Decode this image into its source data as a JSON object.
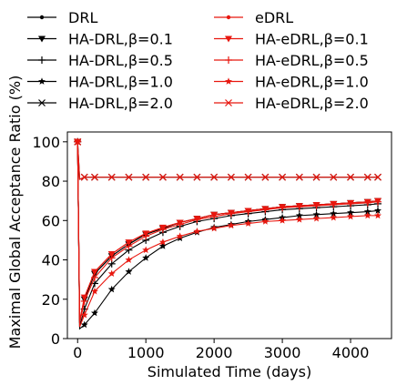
{
  "chart_data": {
    "type": "line",
    "title": "",
    "xlabel": "Simulated Time (days)",
    "ylabel": "Maximal Global Acceptance Ratio (%)",
    "xlim": [
      -150,
      4600
    ],
    "ylim": [
      0,
      105
    ],
    "xticks": [
      0,
      1000,
      2000,
      3000,
      4000
    ],
    "yticks": [
      0,
      20,
      40,
      60,
      80,
      100
    ],
    "grid": false,
    "legend": "above-plot, two columns",
    "colors": {
      "black": "#000000",
      "red": "#e8170f"
    },
    "series": [
      {
        "name": "DRL",
        "color": "#000000",
        "marker": "dot",
        "x": [
          0,
          30,
          100,
          250,
          500,
          750,
          1000,
          1250,
          1500,
          1750,
          2000,
          2250,
          2500,
          2750,
          3000,
          3250,
          3500,
          3750,
          4000,
          4250,
          4400
        ],
        "y": [
          100,
          8,
          20,
          33,
          42,
          48,
          53,
          56,
          59,
          61,
          63,
          64,
          65,
          66,
          67,
          67.5,
          68,
          68.5,
          69,
          69.5,
          70
        ]
      },
      {
        "name": "HA-DRL,β=0.1",
        "color": "#000000",
        "marker": "triangle-down",
        "x": [
          0,
          30,
          100,
          250,
          500,
          750,
          1000,
          1250,
          1500,
          1750,
          2000,
          2250,
          2500,
          2750,
          3000,
          3250,
          3500,
          3750,
          4000,
          4250,
          4400
        ],
        "y": [
          100,
          8,
          20,
          33,
          42,
          48,
          53,
          56,
          59,
          61,
          63,
          64,
          65,
          66,
          67,
          67.5,
          68,
          68.5,
          69,
          69.5,
          70
        ]
      },
      {
        "name": "HA-DRL,β=0.5",
        "color": "#000000",
        "marker": "plus",
        "x": [
          0,
          30,
          100,
          250,
          500,
          750,
          1000,
          1250,
          1500,
          1750,
          2000,
          2250,
          2500,
          2750,
          3000,
          3250,
          3500,
          3750,
          4000,
          4250,
          4400
        ],
        "y": [
          100,
          6,
          15,
          28,
          38,
          45,
          50,
          54,
          57,
          59.5,
          61,
          62.5,
          63.5,
          64.5,
          65.5,
          66,
          66.5,
          67,
          67.5,
          68,
          68.5
        ]
      },
      {
        "name": "HA-DRL,β=1.0",
        "color": "#000000",
        "marker": "star",
        "x": [
          0,
          30,
          100,
          250,
          500,
          750,
          1000,
          1250,
          1500,
          1750,
          2000,
          2250,
          2500,
          2750,
          3000,
          3250,
          3500,
          3750,
          4000,
          4250,
          4400
        ],
        "y": [
          100,
          5,
          7,
          13,
          25,
          34,
          41,
          47,
          51,
          54,
          56.5,
          58,
          59.5,
          60.5,
          61.5,
          62.5,
          63,
          63.5,
          64,
          64.5,
          65
        ]
      },
      {
        "name": "HA-DRL,β=2.0",
        "color": "#000000",
        "marker": "x",
        "x": [
          0,
          30,
          100,
          250,
          500,
          750,
          1000,
          1250,
          1500,
          1750,
          2000,
          2250,
          2500,
          2750,
          3000,
          3250,
          3500,
          3750,
          4000,
          4250,
          4400
        ],
        "y": [
          100,
          81,
          82,
          82,
          82,
          82,
          82,
          82,
          82,
          82,
          82,
          82,
          82,
          82,
          82,
          82,
          82,
          82,
          82,
          82,
          82
        ]
      },
      {
        "name": "eDRL",
        "color": "#e8170f",
        "marker": "dot",
        "x": [
          0,
          30,
          100,
          250,
          500,
          750,
          1000,
          1250,
          1500,
          1750,
          2000,
          2250,
          2500,
          2750,
          3000,
          3250,
          3500,
          3750,
          4000,
          4250,
          4400
        ],
        "y": [
          100,
          9,
          21,
          34,
          43,
          49,
          53.5,
          56.5,
          59,
          61,
          63,
          64,
          65,
          66,
          67,
          67.5,
          68,
          68.5,
          69,
          69.5,
          70
        ]
      },
      {
        "name": "HA-eDRL,β=0.1",
        "color": "#e8170f",
        "marker": "triangle-down",
        "x": [
          0,
          30,
          100,
          250,
          500,
          750,
          1000,
          1250,
          1500,
          1750,
          2000,
          2250,
          2500,
          2750,
          3000,
          3250,
          3500,
          3750,
          4000,
          4250,
          4400
        ],
        "y": [
          100,
          9,
          21,
          34,
          43,
          49,
          53.5,
          56.5,
          59,
          61,
          63,
          64,
          65,
          66,
          67,
          67.5,
          68,
          68.5,
          69,
          69.5,
          70
        ]
      },
      {
        "name": "HA-eDRL,β=0.5",
        "color": "#e8170f",
        "marker": "plus",
        "x": [
          0,
          30,
          100,
          250,
          500,
          750,
          1000,
          1250,
          1500,
          1750,
          2000,
          2250,
          2500,
          2750,
          3000,
          3250,
          3500,
          3750,
          4000,
          4250,
          4400
        ],
        "y": [
          100,
          8,
          19,
          31,
          41,
          47,
          52,
          55.5,
          58,
          60.5,
          62,
          63.5,
          64.5,
          65.5,
          66.5,
          67,
          67.5,
          68,
          68.5,
          69,
          69.5
        ]
      },
      {
        "name": "HA-eDRL,β=1.0",
        "color": "#e8170f",
        "marker": "star",
        "x": [
          0,
          30,
          100,
          250,
          500,
          750,
          1000,
          1250,
          1500,
          1750,
          2000,
          2250,
          2500,
          2750,
          3000,
          3250,
          3500,
          3750,
          4000,
          4250,
          4400
        ],
        "y": [
          100,
          6,
          12,
          24,
          33,
          40,
          45,
          49,
          52,
          54.5,
          56,
          57.5,
          58.5,
          59.5,
          60,
          60.5,
          61,
          61.5,
          62,
          62.5,
          62.5
        ]
      },
      {
        "name": "HA-eDRL,β=2.0",
        "color": "#e8170f",
        "marker": "x",
        "x": [
          0,
          30,
          100,
          250,
          500,
          750,
          1000,
          1250,
          1500,
          1750,
          2000,
          2250,
          2500,
          2750,
          3000,
          3250,
          3500,
          3750,
          4000,
          4250,
          4400
        ],
        "y": [
          100,
          81,
          82,
          82,
          82,
          82,
          82,
          82,
          82,
          82,
          82,
          82,
          82,
          82,
          82,
          82,
          82,
          82,
          82,
          82,
          82
        ]
      }
    ]
  }
}
